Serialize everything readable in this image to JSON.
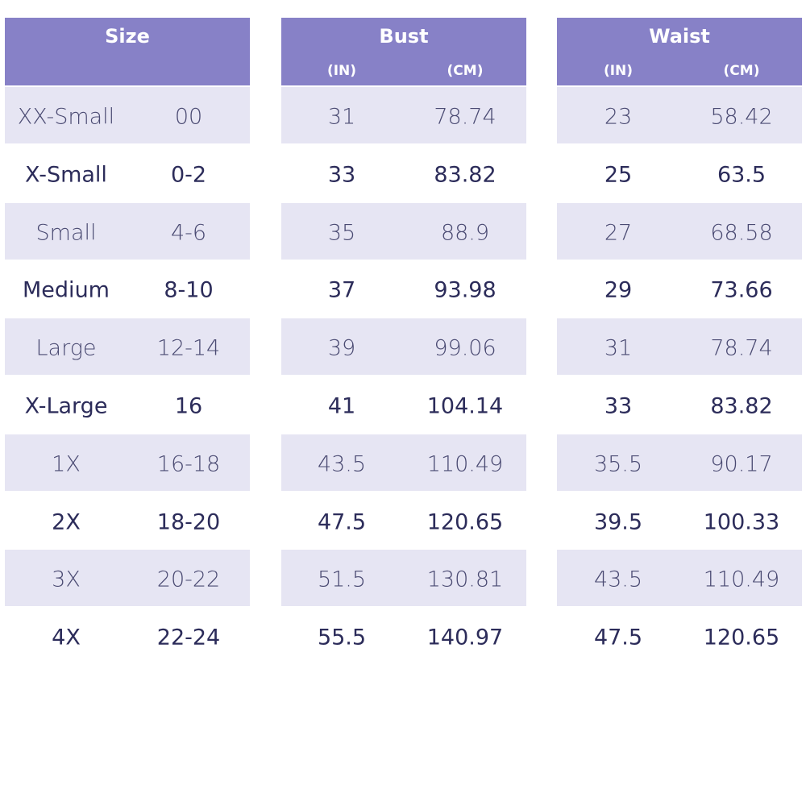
{
  "table": {
    "groups": [
      {
        "title": "Size"
      },
      {
        "title": "Bust",
        "sub": [
          "(IN)",
          "(CM)"
        ]
      },
      {
        "title": "Waist",
        "sub": [
          "(IN)",
          "(CM)"
        ]
      }
    ],
    "rows": [
      [
        "XX-Small",
        "00",
        "31",
        "78.74",
        "23",
        "58.42"
      ],
      [
        "X-Small",
        "0-2",
        "33",
        "83.82",
        "25",
        "63.5"
      ],
      [
        "Small",
        "4-6",
        "35",
        "88.9",
        "27",
        "68.58"
      ],
      [
        "Medium",
        "8-10",
        "37",
        "93.98",
        "29",
        "73.66"
      ],
      [
        "Large",
        "12-14",
        "39",
        "99.06",
        "31",
        "78.74"
      ],
      [
        "X-Large",
        "16",
        "41",
        "104.14",
        "33",
        "83.82"
      ],
      [
        "1X",
        "16-18",
        "43.5",
        "110.49",
        "35.5",
        "90.17"
      ],
      [
        "2X",
        "18-20",
        "47.5",
        "120.65",
        "39.5",
        "100.33"
      ],
      [
        "3X",
        "20-22",
        "51.5",
        "130.81",
        "43.5",
        "110.49"
      ],
      [
        "4X",
        "22-24",
        "55.5",
        "140.97",
        "47.5",
        "120.65"
      ]
    ]
  }
}
